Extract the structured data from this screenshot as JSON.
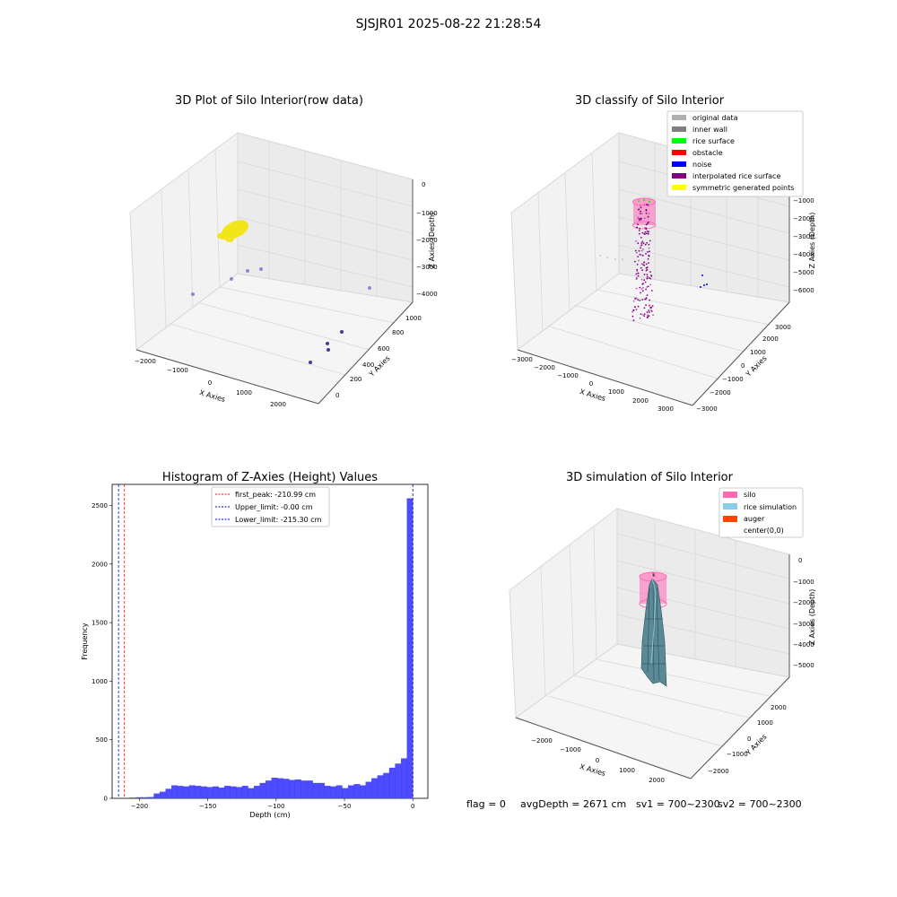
{
  "figure": {
    "suptitle": "SJSJR01 2025-08-22 21:28:54",
    "status": {
      "flag": "flag = 0",
      "avg_depth": "avgDepth = 2671 cm",
      "sv1": "sv1 = 700~2300",
      "sv2": "sv2 = 700~2300"
    }
  },
  "colors": {
    "original": "#b0b0b0",
    "inner_wall": "#808080",
    "rice_surface": "#00ff00",
    "obstacle": "#ff0000",
    "noise": "#0000ff",
    "interpolated": "#800080",
    "symmetric": "#ffff00",
    "silo": "#ff69b4",
    "rice_sim": "#87ceeb",
    "auger": "#ff4500",
    "hist_bar": "#4d4dff",
    "hist_bar_edge": "#3333ee"
  },
  "chart_data": [
    {
      "type": "scatter",
      "title": "3D Plot of Silo Interior(row data)",
      "xlabel": "X Axies",
      "ylabel": "Y Axies",
      "zlabel": "Z Axies (Depth)",
      "x_ticks": [
        "−2000",
        "−1000",
        "0",
        "1000",
        "2000"
      ],
      "y_ticks": [
        "0",
        "200",
        "400",
        "600",
        "800",
        "1000"
      ],
      "z_ticks": [
        "0",
        "−1000",
        "−2000",
        "−3000",
        "−4000"
      ],
      "cluster": {
        "color": "#f2e51a",
        "x_range": [
          -1400,
          -900
        ],
        "y": 600,
        "z_range": [
          -1300,
          -800
        ]
      },
      "points": [
        {
          "x": -2100,
          "y": 200,
          "z": -4200
        },
        {
          "x": -1500,
          "y": 300,
          "z": -3900
        },
        {
          "x": -1300,
          "y": 500,
          "z": -3800
        },
        {
          "x": -1100,
          "y": 700,
          "z": -3700
        },
        {
          "x": 2200,
          "y": 700,
          "z": -4100
        },
        {
          "x": 1500,
          "y": 200,
          "z": -4300
        },
        {
          "x": 1400,
          "y": 150,
          "z": -4400
        },
        {
          "x": 1250,
          "y": 50,
          "z": -4500
        }
      ]
    },
    {
      "type": "scatter",
      "title": "3D classify of Silo Interior",
      "xlabel": "X Axies",
      "ylabel": "Y Axies",
      "zlabel": "Z Axies (Depth)",
      "x_ticks": [
        "−3000",
        "−2000",
        "−1000",
        "0",
        "1000",
        "2000",
        "3000"
      ],
      "y_ticks": [
        "−3000",
        "−2000",
        "−1000",
        "0",
        "1000",
        "2000",
        "3000"
      ],
      "z_ticks": [
        "0",
        "−1000",
        "−2000",
        "−3000",
        "−4000",
        "−5000",
        "−6000"
      ],
      "legend": [
        {
          "label": "original data",
          "color": "#b0b0b0"
        },
        {
          "label": "inner wall",
          "color": "#808080"
        },
        {
          "label": "rice surface",
          "color": "#00ff00"
        },
        {
          "label": "obstacle",
          "color": "#ff0000"
        },
        {
          "label": "noise",
          "color": "#0000ff"
        },
        {
          "label": "interpolated rice surface",
          "color": "#800080"
        },
        {
          "label": "symmetric generated points",
          "color": "#ffff00"
        }
      ]
    },
    {
      "type": "bar",
      "title": "Histogram of Z-Axies (Height) Values",
      "xlabel": "Depth (cm)",
      "ylabel": "Frequency",
      "xlim": [
        -220,
        11
      ],
      "ylim": [
        0,
        2680
      ],
      "x_ticks": [
        -200,
        -150,
        -100,
        -50,
        0
      ],
      "x_tick_labels": [
        "−200",
        "−150",
        "−100",
        "−50",
        "0"
      ],
      "y_ticks": [
        0,
        500,
        1000,
        1500,
        2000,
        2500
      ],
      "y_tick_labels": [
        "0",
        "500",
        "1000",
        "1500",
        "2000",
        "2500"
      ],
      "bin_start": -215.3,
      "bin_width": 4.306,
      "values": [
        0,
        0,
        5,
        8,
        8,
        10,
        40,
        55,
        80,
        110,
        105,
        100,
        110,
        105,
        100,
        95,
        100,
        90,
        105,
        100,
        95,
        105,
        85,
        105,
        130,
        150,
        175,
        170,
        165,
        155,
        160,
        150,
        150,
        130,
        130,
        105,
        100,
        110,
        85,
        110,
        120,
        110,
        140,
        170,
        195,
        215,
        260,
        295,
        340,
        2560
      ],
      "reference_lines": [
        {
          "label": "first_peak: -210.99 cm",
          "value": -210.99,
          "color": "#ff0000"
        },
        {
          "label": "Upper_limit: -0.00 cm",
          "value": 0.0,
          "color": "#00008b"
        },
        {
          "label": "Lower_limit: -215.30 cm",
          "value": -215.3,
          "color": "#0000ff"
        }
      ]
    },
    {
      "type": "surface",
      "title": "3D simulation of Silo Interior",
      "xlabel": "X Axies",
      "ylabel": "Y Axies",
      "zlabel": "Z Axies (Depth)",
      "x_ticks": [
        "−2000",
        "−1000",
        "0",
        "1000",
        "2000"
      ],
      "y_ticks": [
        "−2000",
        "−1000",
        "0",
        "1000",
        "2000"
      ],
      "z_ticks": [
        "0",
        "−1000",
        "−2000",
        "−3000",
        "−4000",
        "−5000"
      ],
      "legend": [
        {
          "label": "silo",
          "color": "#ff69b4"
        },
        {
          "label": "rice simulation",
          "color": "#87ceeb"
        },
        {
          "label": "auger",
          "color": "#ff4500"
        },
        {
          "label": "center(0,0)",
          "color": ""
        }
      ]
    }
  ]
}
